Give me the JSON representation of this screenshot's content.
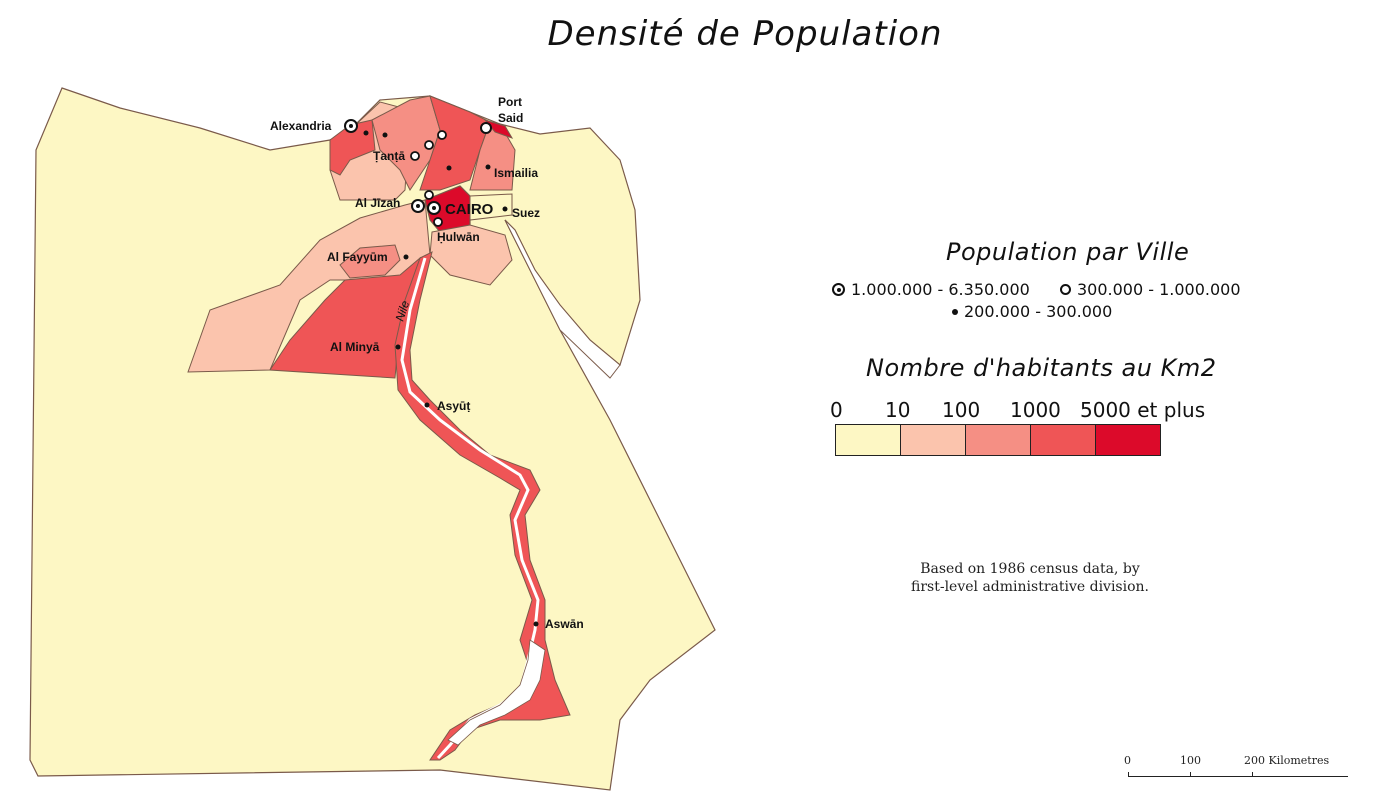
{
  "title": "Densité de Population",
  "legend": {
    "city_heading": "Population par Ville",
    "city_classes": [
      {
        "symbol": "double-circle",
        "label": "1.000.000 - 6.350.000"
      },
      {
        "symbol": "open-circle",
        "label": "300.000 - 1.000.000"
      },
      {
        "symbol": "dot",
        "label": "200.000 - 300.000"
      }
    ],
    "density_heading": "Nombre d'habitants au Km2",
    "density_breaks": [
      "0",
      "10",
      "100",
      "1000",
      "5000 et plus"
    ],
    "density_colors": [
      "#fdf7c4",
      "#fbc4ad",
      "#f58f84",
      "#ef5556",
      "#dc0a2a"
    ]
  },
  "note": {
    "line1": "Based on 1986 census data, by",
    "line2": "first-level administrative division."
  },
  "scale": {
    "ticks": [
      "0",
      "100",
      "200 Kilometres"
    ]
  },
  "cities": {
    "alexandria": "Alexandria",
    "port_said_1": "Port",
    "port_said_2": "Said",
    "tanta": "Ṭanṭā",
    "ismailia": "Ismailia",
    "al_jizah": "Al Jīzah",
    "cairo": "CAIRO",
    "suez": "Suez",
    "hulwan": "Ḥulwān",
    "al_fayyum": "Al Fayyūm",
    "al_minya": "Al Minyā",
    "asyut": "Asyūṭ",
    "aswan": "Aswān",
    "nile": "Nile"
  },
  "colors": {
    "desert": "#fdf7c4",
    "c10": "#fbc4ad",
    "c100": "#f58f84",
    "c1000": "#ef5556",
    "c5000": "#dc0a2a",
    "border": "#7a5a4a"
  }
}
